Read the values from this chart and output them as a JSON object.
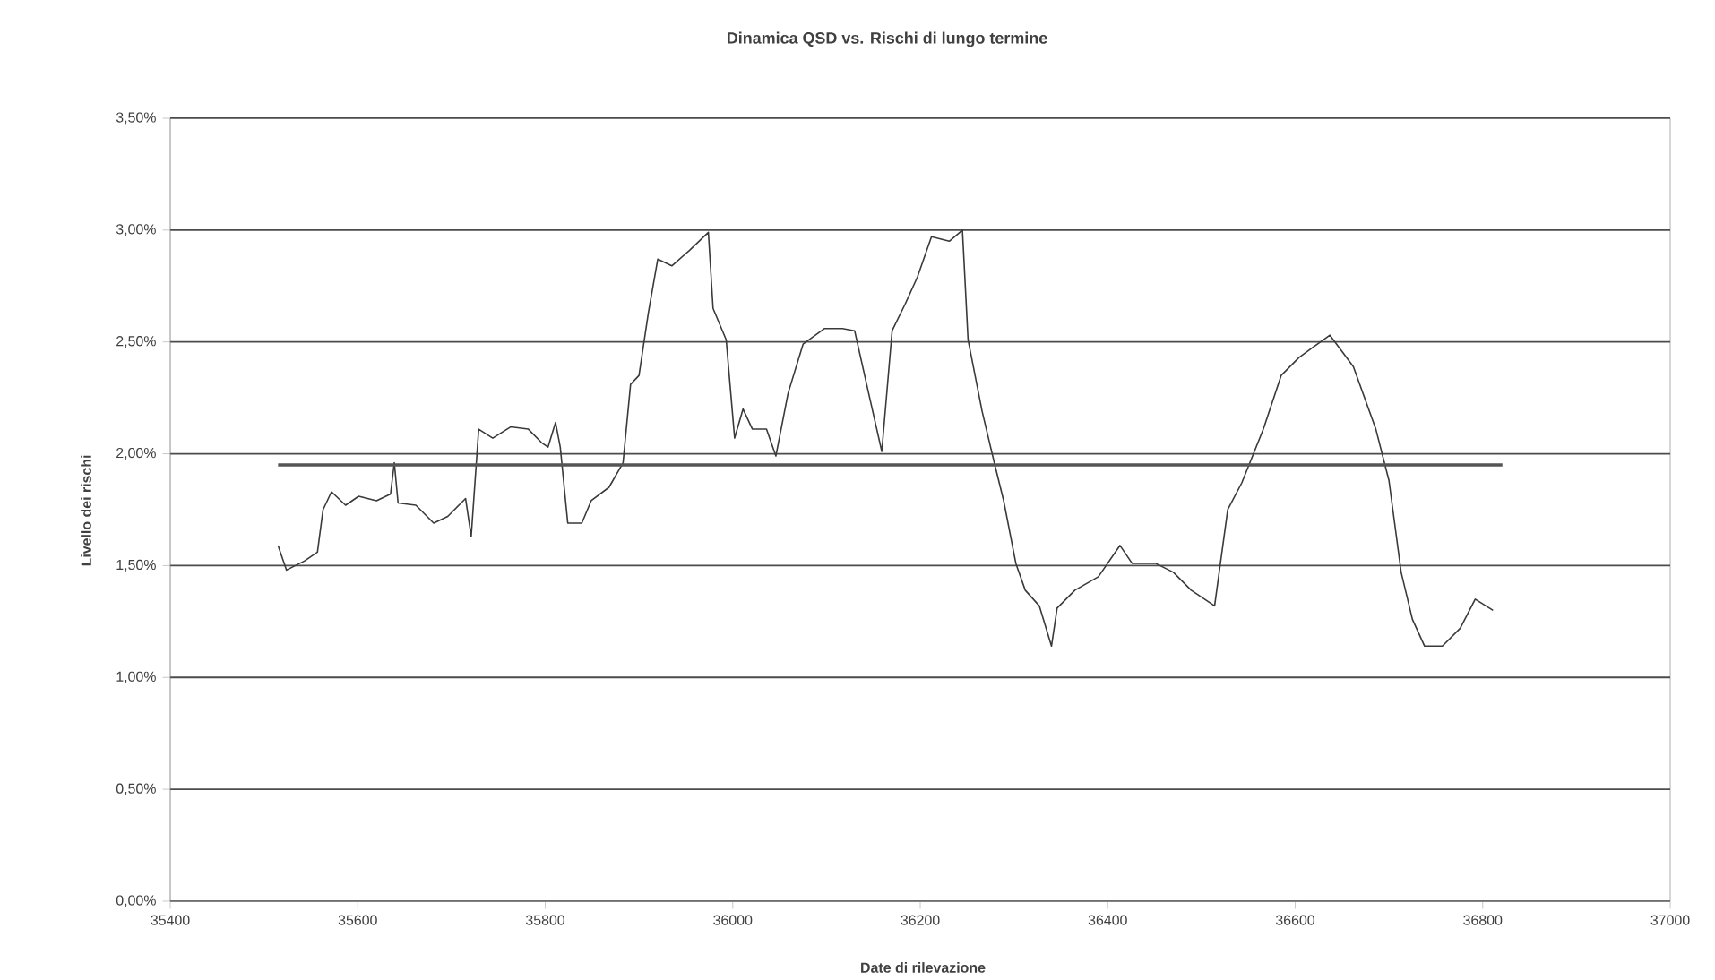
{
  "chart_data": {
    "type": "line",
    "title": "Dinamica QSD vs. Rischi di lungo termine",
    "xlabel": "Date di rilevazione",
    "ylabel": "Livello dei rischi",
    "xlim": [
      35400,
      37000
    ],
    "xticks": [
      35400,
      35600,
      35800,
      36000,
      36200,
      36400,
      36600,
      36800,
      37000
    ],
    "ylim": [
      0,
      3.5
    ],
    "yticks": [
      {
        "value": 0,
        "label": "0,00%"
      },
      {
        "value": 0.5,
        "label": "0,50%"
      },
      {
        "value": 1,
        "label": "1,00%"
      },
      {
        "value": 1.5,
        "label": "1,50%"
      },
      {
        "value": 2,
        "label": "2,00%"
      },
      {
        "value": 2.5,
        "label": "2,50%"
      },
      {
        "value": 3,
        "label": "3,00%"
      },
      {
        "value": 3.5,
        "label": "3,50%"
      }
    ],
    "grid": "y",
    "marker": "none",
    "line_style": "solid",
    "series": [
      {
        "color": "#3a3a3a",
        "x": [
          35515,
          35524,
          35543,
          35557,
          35563,
          35572,
          35587,
          35601,
          35620,
          35635,
          35639,
          35643,
          35662,
          35681,
          35696,
          35715,
          35721,
          35729,
          35744,
          35763,
          35782,
          35796,
          35803,
          35811,
          35816,
          35824,
          35839,
          35849,
          35868,
          35883,
          35891,
          35900,
          35910,
          35920,
          35935,
          35954,
          35974,
          35979,
          35993,
          36002,
          36011,
          36021,
          36036,
          36046,
          36059,
          36075,
          36098,
          36117,
          36130,
          36145,
          36159,
          36170,
          36184,
          36197,
          36212,
          36231,
          36245,
          36251,
          36266,
          36279,
          36289,
          36302,
          36312,
          36327,
          36340,
          36346,
          36365,
          36390,
          36413,
          36426,
          36451,
          36470,
          36489,
          36514,
          36528,
          36543,
          36566,
          36585,
          36604,
          36617,
          36637,
          36662,
          36686,
          36700,
          36713,
          36725,
          36738,
          36757,
          36776,
          36792,
          36811
        ],
        "values": [
          1.59,
          1.48,
          1.52,
          1.56,
          1.75,
          1.83,
          1.77,
          1.81,
          1.79,
          1.82,
          1.96,
          1.78,
          1.77,
          1.69,
          1.72,
          1.8,
          1.63,
          2.11,
          2.07,
          2.12,
          2.11,
          2.05,
          2.03,
          2.14,
          2.03,
          1.69,
          1.69,
          1.79,
          1.85,
          1.96,
          2.31,
          2.35,
          2.63,
          2.87,
          2.84,
          2.91,
          2.99,
          2.65,
          2.51,
          2.07,
          2.2,
          2.11,
          2.11,
          1.99,
          2.27,
          2.49,
          2.56,
          2.56,
          2.55,
          2.27,
          2.01,
          2.55,
          2.67,
          2.79,
          2.97,
          2.95,
          3.0,
          2.51,
          2.19,
          1.96,
          1.79,
          1.51,
          1.39,
          1.32,
          1.14,
          1.31,
          1.39,
          1.45,
          1.59,
          1.51,
          1.51,
          1.47,
          1.39,
          1.32,
          1.75,
          1.87,
          2.11,
          2.35,
          2.43,
          2.47,
          2.53,
          2.39,
          2.11,
          1.88,
          1.47,
          1.26,
          1.14,
          1.14,
          1.22,
          1.35,
          1.3
        ]
      },
      {
        "color": "#555555",
        "x": [
          35515,
          36821
        ],
        "values": [
          1.95,
          1.95
        ]
      }
    ]
  }
}
